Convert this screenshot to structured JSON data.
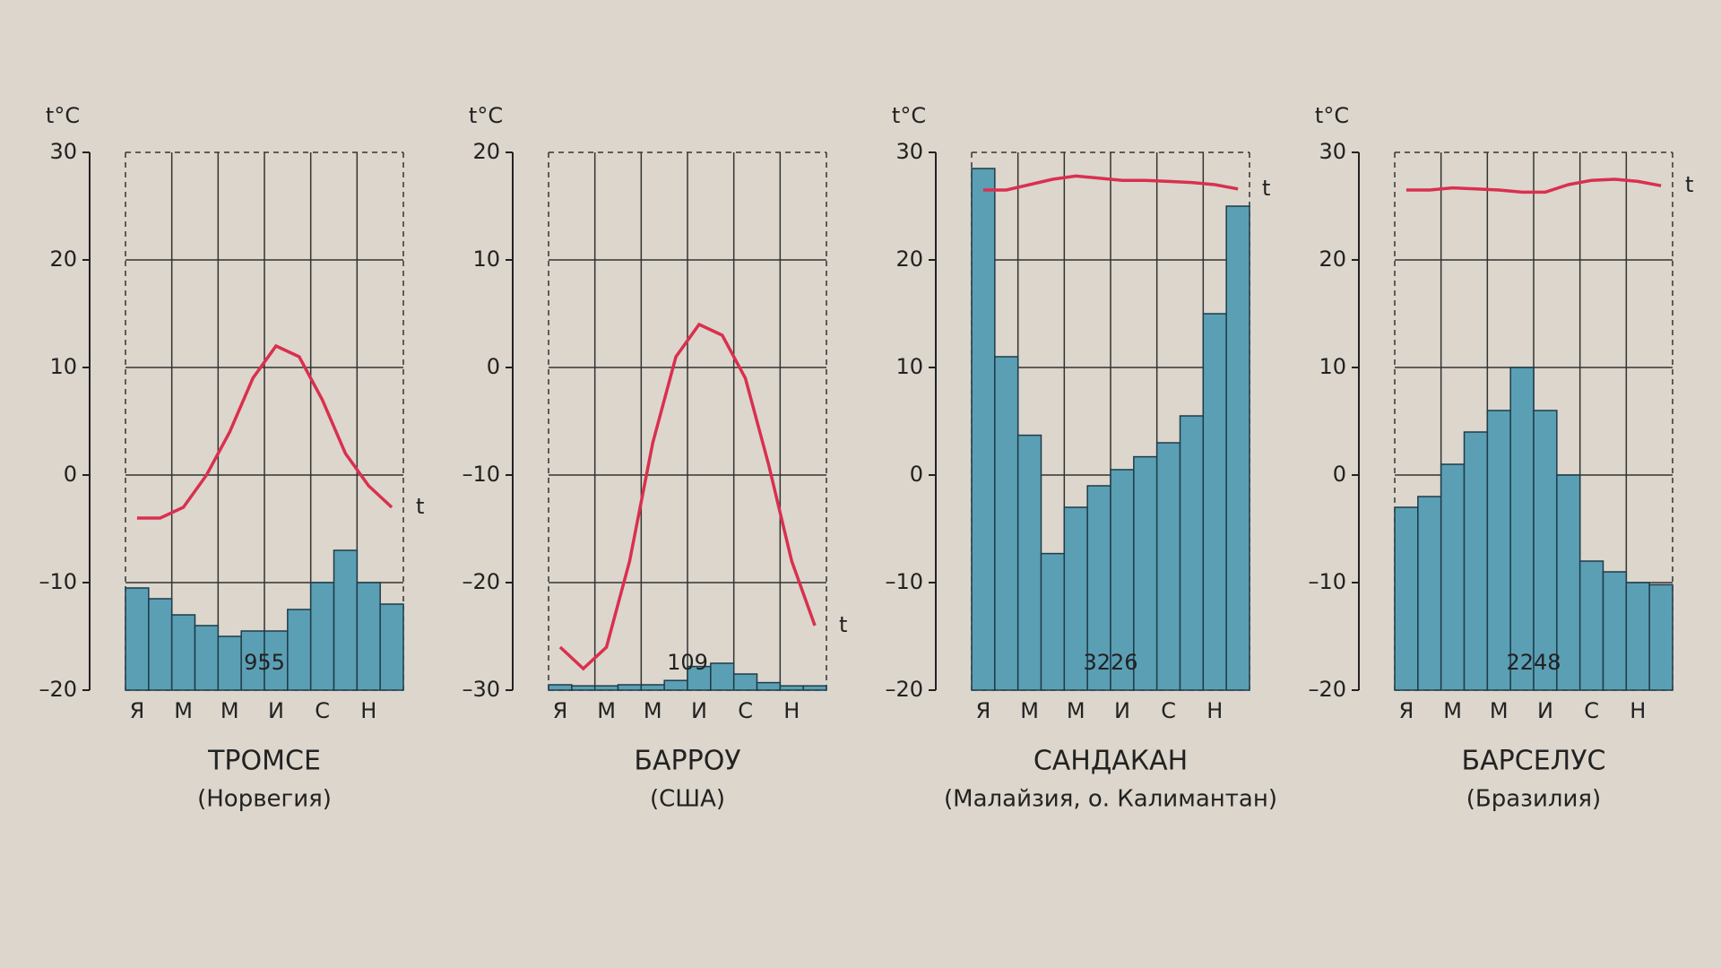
{
  "chart_data": [
    {
      "type": "climatogram",
      "title": "ТРОМСЕ",
      "subtitle": "(Норвегия)",
      "y_label": "t°C",
      "line_label": "t",
      "total": "955",
      "categories": [
        "Я",
        null,
        "М",
        null,
        "М",
        null,
        "И",
        null,
        "С",
        null,
        "Н",
        null
      ],
      "series": [
        {
          "color": "#d9304f",
          "values": [
            -4,
            -4,
            -3,
            0,
            4,
            9,
            12,
            11,
            7,
            2,
            -1,
            -3
          ]
        },
        {
          "color": "#5b9fb5",
          "axis": "y2",
          "values": [
            95,
            85,
            70,
            60,
            50,
            55,
            55,
            75,
            100,
            130,
            100,
            80
          ]
        }
      ],
      "ylim": [
        -20,
        30
      ],
      "yticks": [
        {
          "value": -20,
          "label": "–20"
        },
        {
          "value": -10,
          "label": "–10"
        },
        0,
        10,
        20,
        30
      ],
      "y2lim": [
        0,
        500
      ],
      "grid": true
    },
    {
      "type": "climatogram",
      "title": "БАРРОУ",
      "subtitle": "(США)",
      "y_label": "t°C",
      "line_label": "t",
      "total": "109",
      "categories": [
        "Я",
        null,
        "М",
        null,
        "М",
        null,
        "И",
        null,
        "С",
        null,
        "Н",
        null
      ],
      "series": [
        {
          "color": "#d9304f",
          "values": [
            -26,
            -28,
            -26,
            -18,
            -7,
            1,
            4,
            3,
            -1,
            -9,
            -18,
            -24
          ]
        },
        {
          "color": "#5b9fb5",
          "axis": "y2",
          "values": [
            5,
            4,
            4,
            5,
            5,
            9,
            22,
            25,
            15,
            7,
            4,
            4
          ]
        }
      ],
      "ylim": [
        -30,
        20
      ],
      "yticks": [
        {
          "value": -30,
          "label": "–30"
        },
        {
          "value": -20,
          "label": "–20"
        },
        {
          "value": -10,
          "label": "–10"
        },
        0,
        10,
        20
      ],
      "y2lim": [
        0,
        500
      ],
      "grid": true
    },
    {
      "type": "climatogram",
      "title": "САНДАКАН",
      "subtitle": "(Малайзия, о. Калимантан)",
      "y_label": "t°C",
      "line_label": "t",
      "total": "3226",
      "categories": [
        "Я",
        null,
        "М",
        null,
        "М",
        null,
        "И",
        null,
        "С",
        null,
        "Н",
        null
      ],
      "series": [
        {
          "color": "#d9304f",
          "values": [
            26.5,
            26.5,
            27,
            27.5,
            27.8,
            27.6,
            27.4,
            27.4,
            27.3,
            27.2,
            27,
            26.6
          ]
        },
        {
          "color": "#5b9fb5",
          "axis": "y2",
          "values": [
            485,
            310,
            237,
            127,
            170,
            190,
            205,
            217,
            230,
            255,
            350,
            450
          ]
        }
      ],
      "ylim": [
        -20,
        30
      ],
      "yticks": [
        {
          "value": -20,
          "label": "–20"
        },
        {
          "value": -10,
          "label": "–10"
        },
        0,
        10,
        20,
        30
      ],
      "y2lim": [
        0,
        500
      ],
      "grid": true
    },
    {
      "type": "climatogram",
      "title": "БАРСЕЛУС",
      "subtitle": "(Бразилия)",
      "y_label": "t°C",
      "line_label": "t",
      "total": "2248",
      "categories": [
        "Я",
        null,
        "М",
        null,
        "М",
        null,
        "И",
        null,
        "С",
        null,
        "Н",
        null
      ],
      "series": [
        {
          "color": "#d9304f",
          "values": [
            26.5,
            26.5,
            26.7,
            26.6,
            26.5,
            26.3,
            26.3,
            27,
            27.4,
            27.5,
            27.3,
            26.9
          ]
        },
        {
          "color": "#5b9fb5",
          "axis": "y2",
          "values": [
            170,
            180,
            210,
            240,
            260,
            300,
            260,
            200,
            120,
            110,
            100,
            98
          ]
        }
      ],
      "ylim": [
        -20,
        30
      ],
      "yticks": [
        {
          "value": -20,
          "label": "–20"
        },
        {
          "value": -10,
          "label": "–10"
        },
        0,
        10,
        20,
        30
      ],
      "y2lim": [
        0,
        500
      ],
      "grid": true
    }
  ]
}
